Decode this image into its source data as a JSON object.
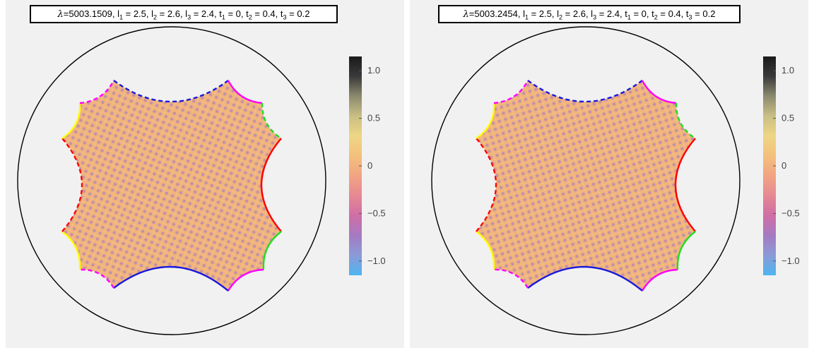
{
  "panels": [
    {
      "lambda": "5003.1509",
      "params": [
        {
          "name": "l",
          "sub": "1",
          "value": "2.5"
        },
        {
          "name": "l",
          "sub": "2",
          "value": "2.6"
        },
        {
          "name": "l",
          "sub": "3",
          "value": "2.4"
        },
        {
          "name": "t",
          "sub": "1",
          "value": "0"
        },
        {
          "name": "t",
          "sub": "2",
          "value": "0.4"
        },
        {
          "name": "t",
          "sub": "3",
          "value": "0.2"
        }
      ]
    },
    {
      "lambda": "5003.2454",
      "params": [
        {
          "name": "l",
          "sub": "1",
          "value": "2.5"
        },
        {
          "name": "l",
          "sub": "2",
          "value": "2.6"
        },
        {
          "name": "l",
          "sub": "3",
          "value": "2.4"
        },
        {
          "name": "t",
          "sub": "1",
          "value": "0"
        },
        {
          "name": "t",
          "sub": "2",
          "value": "0.4"
        },
        {
          "name": "t",
          "sub": "3",
          "value": "0.2"
        }
      ]
    }
  ],
  "colorbar": {
    "ticks": [
      "1.0",
      "0.5",
      "0",
      "−0.5",
      "−1.0"
    ],
    "tick_values": [
      1.0,
      0.5,
      0,
      -0.5,
      -1.0
    ],
    "range": [
      -1.15,
      1.15
    ],
    "stops": [
      "#4cb5f0",
      "#8a9bd8",
      "#a57ac2",
      "#cf6ea6",
      "#e68893",
      "#f2a482",
      "#f3c07c",
      "#eed685",
      "#c9bf84",
      "#8c8a6e",
      "#3a3a3a",
      "#1a1a1a"
    ]
  },
  "colors": {
    "disk_outline": "#000000",
    "edge_red": "#ff0000",
    "edge_blue": "#1a1adc",
    "edge_magenta": "#ff00ff",
    "edge_green": "#22dd22",
    "edge_yellow": "#ffff00",
    "pattern_light": "#f1b47e",
    "pattern_dark": "#b486b2"
  }
}
